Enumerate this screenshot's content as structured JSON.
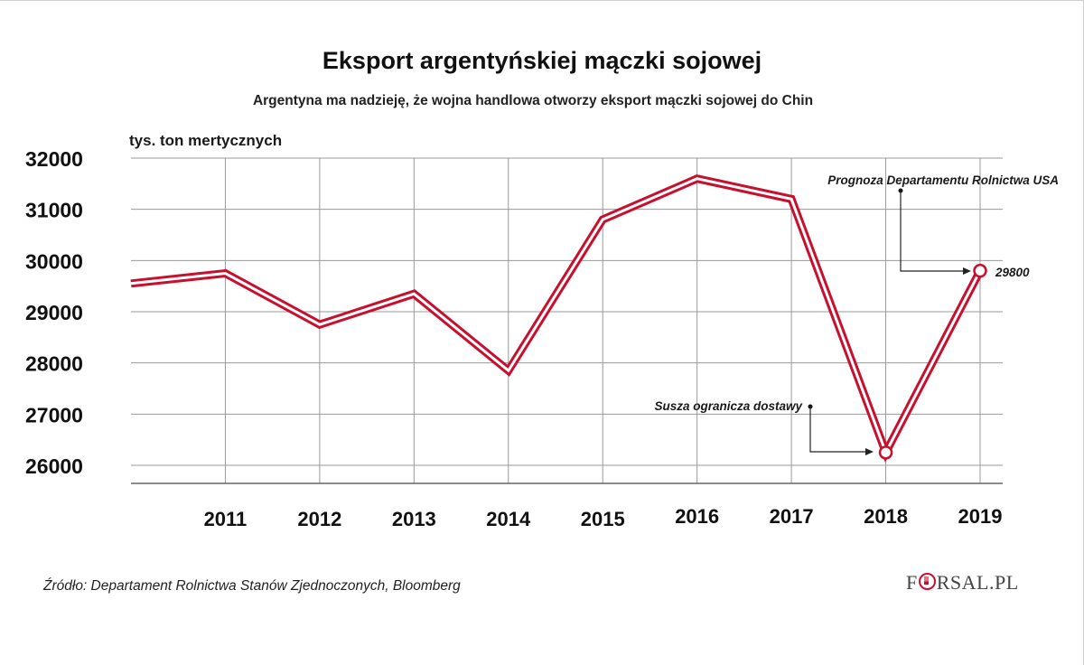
{
  "header": {
    "title": "Eksport argentyńskiej mączki sojowej",
    "subtitle": "Argentyna ma nadzieję, że wojna handlowa otworzy eksport mączki sojowej do Chin"
  },
  "footer": {
    "source": "Źródło: Departament Rolnictwa Stanów Zjednoczonych, Bloomberg",
    "logo_icon": "forsal-o-chart-icon"
  },
  "logo": {
    "left": "F",
    "right": "RSAL.PL"
  },
  "colors": {
    "line": "#c8102e",
    "grid": "#9a9a9a",
    "text": "#1a1a1a"
  },
  "chart_data": {
    "type": "line",
    "title": "Eksport argentyńskiej mączki sojowej",
    "subtitle": "Argentyna ma nadzieję, że wojna handlowa otworzy eksport mączki sojowej do Chin",
    "ylabel": "tys. ton mertycznych",
    "xlabel": "",
    "ylim": [
      25700,
      32000
    ],
    "yticks": [
      26000,
      27000,
      28000,
      29000,
      30000,
      31000,
      32000
    ],
    "x": [
      2010,
      2011,
      2012,
      2013,
      2014,
      2015,
      2016,
      2017,
      2018,
      2019
    ],
    "x_tick_labels": [
      "2011",
      "2012",
      "2013",
      "2014",
      "2015",
      "2016",
      "2017",
      "2018",
      "2019"
    ],
    "series": [
      {
        "values": [
          29550,
          29750,
          28750,
          29350,
          27850,
          30800,
          31600,
          31200,
          26250,
          29800
        ]
      }
    ],
    "grid": true,
    "annotations": [
      {
        "text": "Prognoza Departamentu Rolnictwa USA",
        "x": 2019,
        "y": 29800
      },
      {
        "text": "29800",
        "x": 2019,
        "y": 29800
      },
      {
        "text": "Susza ogranicza dostawy",
        "x": 2018,
        "y": 26250
      }
    ]
  }
}
